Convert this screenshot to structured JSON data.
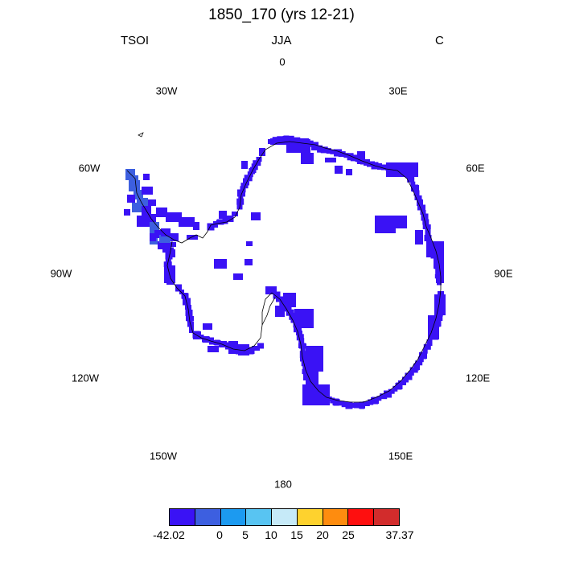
{
  "title": "1850_170 (yrs 12-21)",
  "variable": "TSOI",
  "season": "JJA",
  "units": "C",
  "longitude_labels": {
    "lon_0": "0",
    "lon_30e": "30E",
    "lon_60e": "60E",
    "lon_90e": "90E",
    "lon_120e": "120E",
    "lon_150e": "150E",
    "lon_180": "180",
    "lon_150w": "150W",
    "lon_120w": "120W",
    "lon_90w": "90W",
    "lon_60w": "60W",
    "lon_30w": "30W"
  },
  "colorbar": {
    "colors": [
      "#3a12f5",
      "#3d5fe0",
      "#1c9af0",
      "#58c4f2",
      "#c6eaf8",
      "#fed22e",
      "#fe8c0f",
      "#fe0f0f",
      "#d22c2c"
    ],
    "labels": {
      "min": "-42.02",
      "l0": "0",
      "l5": "5",
      "l10": "10",
      "l15": "15",
      "l20": "20",
      "l25": "25",
      "max": "37.37"
    }
  },
  "map_colors": {
    "coast_cells": "#3a12f5",
    "peninsula_cells": "#3d5fe0",
    "coastline": "#000000"
  }
}
